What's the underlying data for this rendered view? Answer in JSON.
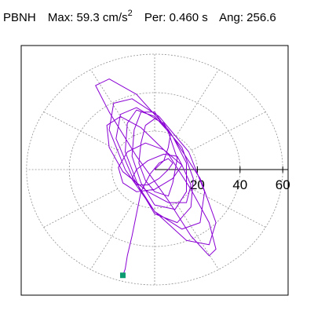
{
  "header": {
    "station": "PBNH",
    "max_label": "Max:",
    "max_value": "59.3",
    "max_unit": "cm/s",
    "max_exp": "2",
    "per_label": "Per:",
    "per_value": "0.460 s",
    "ang_label": "Ang: 256.6"
  },
  "chart_data": {
    "type": "scatter",
    "title": "",
    "xlabel": "",
    "ylabel": "",
    "xlim": [
      -60,
      60
    ],
    "ylim": [
      -55,
      55
    ],
    "ring_values": [
      20,
      40,
      60
    ],
    "tick_labels": [
      "20",
      "40",
      "60"
    ],
    "spoke_angles_deg": [
      0,
      30,
      60,
      90,
      120,
      150,
      180,
      210,
      240,
      270,
      300,
      330
    ],
    "grid": true,
    "colors": {
      "trace": "#8a00d4",
      "grid": "#909090",
      "marker": "#0c9b70",
      "axis": "#000000"
    },
    "end_marker": {
      "x": -14.9,
      "y": -55.0
    },
    "series": [
      {
        "label": "",
        "x": [
          0,
          4.3,
          6.4,
          7.4,
          4.3,
          0,
          -4.3,
          -6.4,
          -7.4,
          -4.3,
          0,
          6.4,
          8.5,
          10.6,
          6.4,
          0,
          -6.4,
          -9.6,
          -10.6,
          -6.4,
          0,
          9.6,
          14.9,
          14.9,
          8.5,
          0,
          -8.5,
          -12.8,
          -13.8,
          -7.4,
          0,
          10.6,
          17.0,
          18.1,
          12.8,
          2.1,
          -8.5,
          -16.0,
          -18.1,
          -10.6,
          0,
          12.8,
          21.3,
          23.4,
          16.0,
          2.1,
          -10.6,
          -19.2,
          -21.3,
          -13.8,
          0,
          14.9,
          25.5,
          28.7,
          21.3,
          6.4,
          -8.5,
          -21.3,
          -27.7,
          -21.3,
          -8.5,
          6.4,
          17.0,
          25.5,
          28.7,
          25.5,
          17.0,
          6.4,
          -6.4,
          -16.0,
          -22.4,
          -21.3,
          -14.9,
          -3.2,
          6.4,
          14.9,
          17.0,
          12.8,
          4.3,
          -4.3,
          -12.8,
          -17.0,
          -14.9,
          -8.5,
          0,
          8.5,
          12.8,
          10.6,
          4.3,
          -3.2,
          -8.5,
          -10.6,
          -8.5,
          -3.2,
          2.1,
          6.4,
          8.5,
          6.4,
          2.1,
          -2.1,
          -6.4,
          -8.5,
          -10.6,
          -12.8,
          -13.8,
          -14.9
        ],
        "y": [
          0,
          4.6,
          11.5,
          18.4,
          24.1,
          26.4,
          23.0,
          13.8,
          3.4,
          -5.7,
          -11.5,
          -13.8,
          -6.9,
          5.7,
          19.5,
          29.9,
          29.9,
          20.7,
          6.9,
          -6.9,
          -18.4,
          -20.7,
          -11.5,
          3.4,
          17.2,
          27.6,
          31.0,
          24.1,
          9.2,
          -9.2,
          -23.0,
          -27.6,
          -19.5,
          -4.6,
          11.5,
          25.3,
          32.2,
          28.7,
          16.1,
          -3.4,
          -21.8,
          -31.0,
          -27.6,
          -11.5,
          9.2,
          27.6,
          36.8,
          34.5,
          20.7,
          0,
          -21.8,
          -36.8,
          -39.1,
          -27.6,
          -4.6,
          20.7,
          39.1,
          47.1,
          43.7,
          29.9,
          6.9,
          -16.1,
          -34.5,
          -44.8,
          -41.4,
          -27.6,
          -10.3,
          8.0,
          21.8,
          27.6,
          23.0,
          11.5,
          -1.1,
          -11.5,
          -17.2,
          -17.2,
          -8.0,
          2.3,
          10.3,
          13.8,
          9.2,
          1.1,
          -6.9,
          -11.5,
          -10.3,
          -4.6,
          2.3,
          6.9,
          8.0,
          4.6,
          0,
          -4.6,
          -8.0,
          -8.0,
          -4.6,
          0,
          3.4,
          5.7,
          3.4,
          -2.3,
          -11.5,
          -23.0,
          -34.5,
          -44.8,
          -51.7,
          -55.0
        ]
      }
    ]
  }
}
